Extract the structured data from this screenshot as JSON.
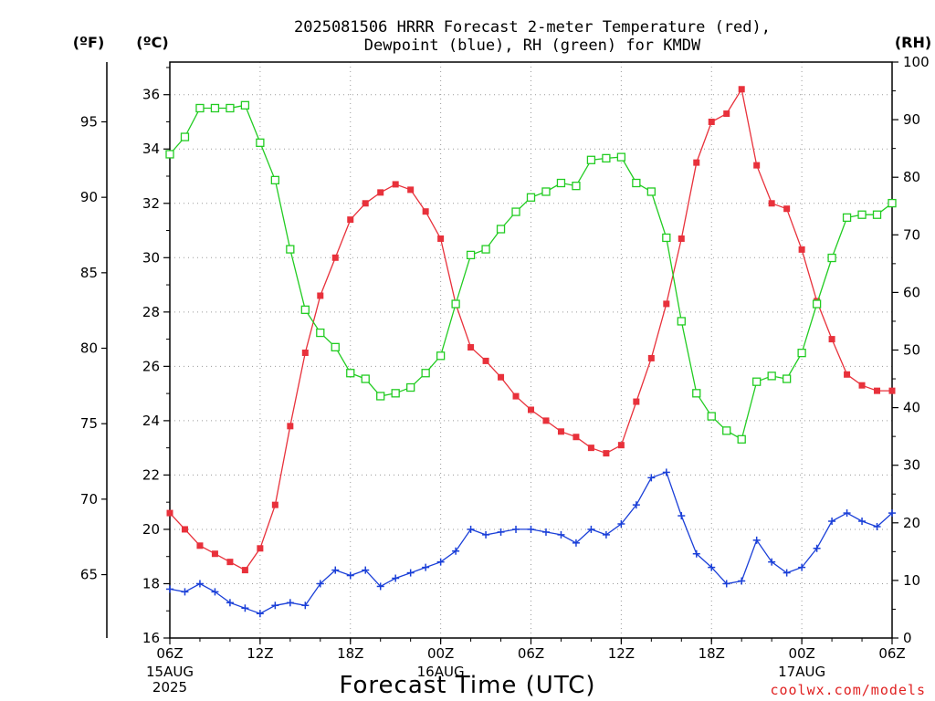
{
  "chart_data": {
    "type": "line",
    "title_lines": [
      "2025081506 HRRR Forecast 2-meter Temperature (red),",
      "Dewpoint (blue), RH (green) for KMDW"
    ],
    "xlabel": "Forecast Time (UTC)",
    "source": "coolwx.com/models",
    "source_color": "#e02020",
    "units": {
      "far_left": "(ºF)",
      "left": "(ºC)",
      "right": "(RH)"
    },
    "x_hours": {
      "start": 0,
      "end": 48,
      "step": 1
    },
    "x_ticks": [
      {
        "hour": 0,
        "label": "06Z",
        "sub": [
          "15AUG",
          "2025"
        ]
      },
      {
        "hour": 6,
        "label": "12Z",
        "sub": []
      },
      {
        "hour": 12,
        "label": "18Z",
        "sub": []
      },
      {
        "hour": 18,
        "label": "00Z",
        "sub": [
          "16AUG"
        ]
      },
      {
        "hour": 24,
        "label": "06Z",
        "sub": []
      },
      {
        "hour": 30,
        "label": "12Z",
        "sub": []
      },
      {
        "hour": 36,
        "label": "18Z",
        "sub": []
      },
      {
        "hour": 42,
        "label": "00Z",
        "sub": [
          "17AUG"
        ]
      },
      {
        "hour": 48,
        "label": "06Z",
        "sub": []
      }
    ],
    "y_celsius": {
      "range": [
        16,
        37.2
      ],
      "ticks": [
        16,
        18,
        20,
        22,
        24,
        26,
        28,
        30,
        32,
        34,
        36
      ]
    },
    "y_fahrenheit": {
      "ticks": [
        65,
        70,
        75,
        80,
        85,
        90,
        95
      ]
    },
    "y_rh": {
      "range": [
        0,
        100
      ],
      "ticks": [
        0,
        10,
        20,
        30,
        40,
        50,
        60,
        70,
        80,
        90,
        100
      ]
    },
    "series": [
      {
        "name": "Temperature",
        "color": "#e8313b",
        "marker": "filled-square",
        "axis": "celsius",
        "values": [
          20.6,
          20.0,
          19.4,
          19.1,
          18.8,
          18.5,
          19.3,
          20.9,
          23.8,
          26.5,
          28.6,
          30.0,
          31.4,
          32.0,
          32.4,
          32.7,
          32.5,
          31.7,
          30.7,
          28.3,
          26.7,
          26.2,
          25.6,
          24.9,
          24.4,
          24.0,
          23.6,
          23.4,
          23.0,
          22.8,
          23.1,
          24.7,
          26.3,
          28.3,
          30.7,
          33.5,
          35.0,
          35.3,
          36.2,
          33.4,
          32.0,
          31.8,
          30.3,
          28.4,
          27.0,
          25.7,
          25.3,
          25.1,
          25.1
        ]
      },
      {
        "name": "Dewpoint",
        "color": "#1a3fd8",
        "marker": "plus",
        "axis": "celsius",
        "values": [
          17.8,
          17.7,
          18.0,
          17.7,
          17.3,
          17.1,
          16.9,
          17.2,
          17.3,
          17.2,
          18.0,
          18.5,
          18.3,
          18.5,
          17.9,
          18.2,
          18.4,
          18.6,
          18.8,
          19.2,
          20.0,
          19.8,
          19.9,
          20.0,
          20.0,
          19.9,
          19.8,
          19.5,
          20.0,
          19.8,
          20.2,
          20.9,
          21.9,
          22.1,
          20.5,
          19.1,
          18.6,
          18.0,
          18.1,
          19.6,
          18.8,
          18.4,
          18.6,
          19.3,
          20.3,
          20.6,
          20.3,
          20.1,
          20.6
        ]
      },
      {
        "name": "RH",
        "color": "#22cc22",
        "marker": "open-square",
        "axis": "rh",
        "values": [
          84,
          87,
          92,
          92,
          92,
          92.5,
          86,
          79.5,
          67.5,
          57,
          53,
          50.5,
          46,
          45,
          42,
          42.5,
          43.5,
          46,
          49,
          58,
          66.5,
          67.5,
          71,
          74,
          76.5,
          77.5,
          79,
          78.5,
          83,
          83.3,
          83.5,
          79,
          77.5,
          69.5,
          55,
          42.5,
          38.5,
          36,
          34.5,
          44.5,
          45.5,
          45,
          49.5,
          58,
          66,
          73,
          73.5,
          73.5,
          75.5
        ]
      }
    ],
    "grid": true,
    "legend": "none"
  }
}
